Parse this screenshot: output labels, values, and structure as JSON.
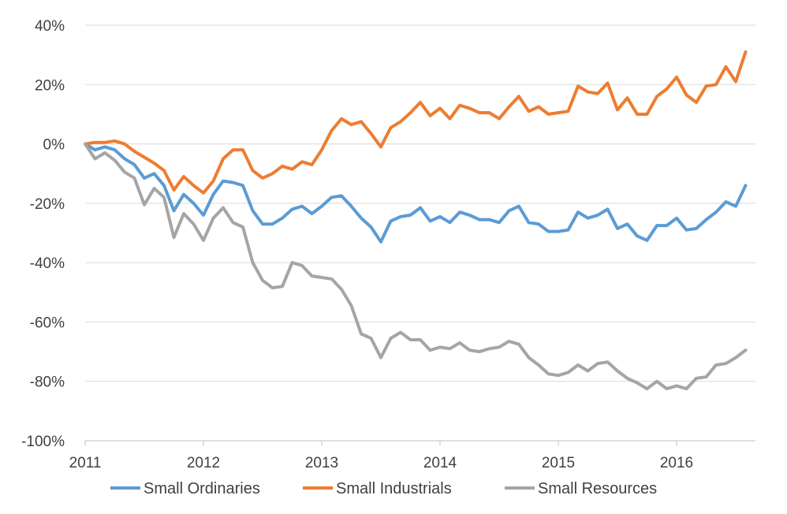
{
  "chart_data": {
    "type": "line",
    "title": "",
    "xlabel": "",
    "ylabel": "",
    "x_start": 2011,
    "x_step": "1 month",
    "xlim": [
      2011,
      2016.67
    ],
    "ylim": [
      -100,
      40
    ],
    "y_unit": "%",
    "yticks": [
      40,
      20,
      0,
      -20,
      -40,
      -60,
      -80,
      -100
    ],
    "ytick_labels": [
      "40%",
      "20%",
      "0%",
      "-20%",
      "-40%",
      "-60%",
      "-80%",
      "-100%"
    ],
    "xticks": [
      2011,
      2012,
      2013,
      2014,
      2015,
      2016
    ],
    "xtick_labels": [
      "2011",
      "2012",
      "2013",
      "2014",
      "2015",
      "2016"
    ],
    "grid": "horizontal",
    "legend_position": "bottom",
    "series": [
      {
        "name": "Small Ordinaries",
        "color": "#5b9bd5",
        "values": [
          0,
          -2,
          -1,
          -2,
          -5,
          -7,
          -11.5,
          -10,
          -14,
          -22.5,
          -17,
          -20,
          -24,
          -17,
          -12.5,
          -13,
          -14,
          -22.5,
          -27,
          -27,
          -25,
          -22,
          -21,
          -23.5,
          -21,
          -18,
          -17.5,
          -21,
          -25,
          -28,
          -33,
          -26,
          -24.5,
          -24,
          -21.5,
          -26,
          -24.5,
          -26.5,
          -23,
          -24,
          -25.5,
          -25.5,
          -26.5,
          -22.5,
          -21,
          -26.5,
          -27,
          -29.5,
          -29.5,
          -29,
          -23,
          -25,
          -24,
          -22,
          -28.5,
          -27,
          -31,
          -32.5,
          -27.5,
          -27.5,
          -25,
          -29,
          -28.5,
          -25.5,
          -23,
          -19.5,
          -21,
          -14
        ]
      },
      {
        "name": "Small Industrials",
        "color": "#ed7d31",
        "values": [
          0,
          0.5,
          0.5,
          1,
          0,
          -2.5,
          -4.5,
          -6.5,
          -9,
          -15.5,
          -11,
          -14,
          -16.5,
          -12.5,
          -5,
          -2,
          -2,
          -9,
          -11.5,
          -10,
          -7.5,
          -8.5,
          -6,
          -7,
          -2,
          4.5,
          8.5,
          6.5,
          7.5,
          3.5,
          -1,
          5.5,
          7.5,
          10.5,
          14,
          9.5,
          12,
          8.5,
          13,
          12,
          10.5,
          10.5,
          8.5,
          12.5,
          16,
          11,
          12.5,
          10,
          10.5,
          11,
          19.5,
          17.5,
          17,
          20.5,
          11.5,
          15.5,
          10,
          10,
          16,
          18.5,
          22.5,
          16.5,
          14,
          19.5,
          20,
          26,
          21,
          31
        ]
      },
      {
        "name": "Small Resources",
        "color": "#a5a5a5",
        "values": [
          0,
          -5,
          -3,
          -5.5,
          -9.5,
          -11.5,
          -20.5,
          -15,
          -18,
          -31.5,
          -23.5,
          -27,
          -32.5,
          -25,
          -21.5,
          -26.5,
          -28,
          -40,
          -46,
          -48.5,
          -48,
          -40,
          -41,
          -44.5,
          -45,
          -45.5,
          -49,
          -54.5,
          -64,
          -65.5,
          -72,
          -65.5,
          -63.5,
          -66,
          -66,
          -69.5,
          -68.5,
          -69,
          -67,
          -69.5,
          -70,
          -69,
          -68.5,
          -66.5,
          -67.5,
          -72,
          -74.5,
          -77.5,
          -78,
          -77,
          -74.5,
          -76.5,
          -74,
          -73.5,
          -76.5,
          -79,
          -80.5,
          -82.5,
          -80,
          -82.5,
          -81.5,
          -82.5,
          -79,
          -78.5,
          -74.5,
          -74,
          -72,
          -69.5
        ]
      }
    ]
  }
}
